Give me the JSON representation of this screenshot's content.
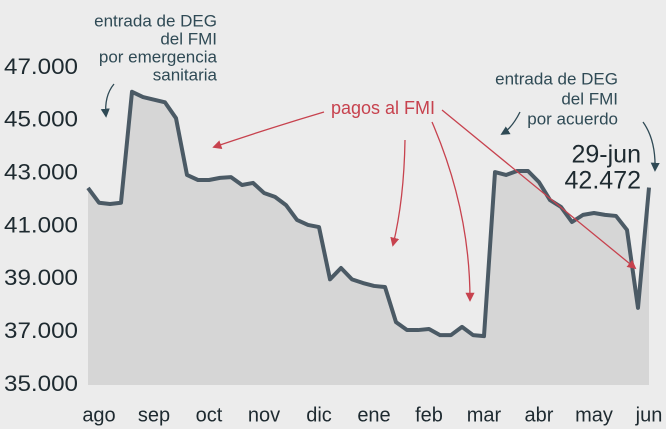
{
  "chart_data": {
    "type": "area",
    "categories": [
      null,
      "ago",
      null,
      null,
      null,
      null,
      "sep",
      null,
      null,
      null,
      null,
      "oct",
      null,
      null,
      null,
      null,
      "nov",
      null,
      null,
      null,
      null,
      "dic",
      null,
      null,
      null,
      null,
      "ene",
      null,
      null,
      null,
      null,
      "feb",
      null,
      null,
      null,
      null,
      "mar",
      null,
      null,
      null,
      null,
      "abr",
      null,
      null,
      null,
      null,
      "may",
      null,
      null,
      null,
      null,
      "jun"
    ],
    "series": [
      {
        "color": "#4b5a65",
        "fill": "#d6d6d6",
        "values": [
          42460,
          41900,
          41850,
          41900,
          46100,
          45900,
          45800,
          45700,
          45100,
          42950,
          42760,
          42760,
          42840,
          42870,
          42570,
          42650,
          42270,
          42120,
          41810,
          41250,
          41060,
          40980,
          39000,
          39430,
          39000,
          38860,
          38750,
          38710,
          37380,
          37080,
          37080,
          37120,
          36890,
          36890,
          37200,
          36890,
          36850,
          43060,
          42950,
          43100,
          43100,
          42680,
          42000,
          41740,
          41170,
          41440,
          41510,
          41440,
          41400,
          40870,
          37920,
          42472
        ],
        "value_labels": [
          null,
          null,
          null,
          null,
          null,
          null,
          null,
          null,
          null,
          null,
          null,
          null,
          null,
          null,
          null,
          null,
          null,
          null,
          null,
          null,
          null,
          null,
          null,
          null,
          null,
          null,
          null,
          null,
          null,
          null,
          null,
          null,
          null,
          null,
          null,
          null,
          null,
          null,
          null,
          null,
          null,
          null,
          null,
          null,
          null,
          null,
          null,
          null,
          null,
          null,
          null,
          "42.472"
        ]
      }
    ],
    "ylim": [
      35000,
      47000
    ],
    "yticks": [
      {
        "value": 35000,
        "label": "35.000"
      },
      {
        "value": 37000,
        "label": "37.000"
      },
      {
        "value": 39000,
        "label": "39.000"
      },
      {
        "value": 41000,
        "label": "41.000"
      },
      {
        "value": 43000,
        "label": "43.000"
      },
      {
        "value": 45000,
        "label": "45.000"
      },
      {
        "value": 47000,
        "label": "47.000"
      }
    ],
    "annotations": [
      {
        "lines": [
          "entrada de DEG",
          "del FMI",
          "por emergencia",
          "sanitaria"
        ],
        "color": "#2f4a55"
      },
      {
        "lines": [
          "pagos al FMI"
        ],
        "color": "#c7424e"
      },
      {
        "lines": [
          "entrada de DEG",
          "del FMI",
          "por acuerdo"
        ],
        "color": "#2f4a55"
      },
      {
        "lines": [
          "29-jun"
        ],
        "color": "#1e2a30"
      }
    ]
  }
}
